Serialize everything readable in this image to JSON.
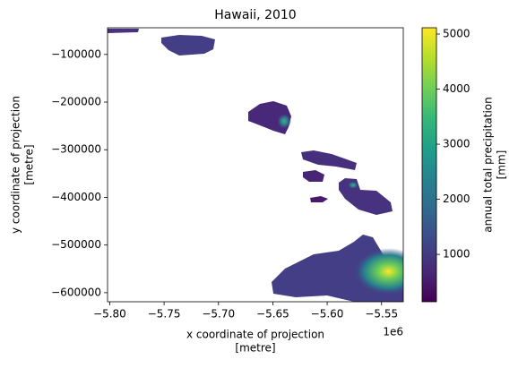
{
  "chart_data": {
    "type": "raster",
    "title": "Hawaii, 2010",
    "x_label": [
      "x coordinate of projection",
      "[metre]"
    ],
    "y_label": [
      "y coordinate of projection",
      "[metre]"
    ],
    "x_offset_label": "1e6",
    "xlim": [
      -5802000,
      -5530000
    ],
    "xticks": [
      {
        "value": -5800000,
        "label": "−5.80"
      },
      {
        "value": -5750000,
        "label": "−5.75"
      },
      {
        "value": -5700000,
        "label": "−5.70"
      },
      {
        "value": -5650000,
        "label": "−5.65"
      },
      {
        "value": -5600000,
        "label": "−5.60"
      },
      {
        "value": -5550000,
        "label": "−5.55"
      }
    ],
    "ylim": [
      -619000,
      -44000
    ],
    "yticks": [
      {
        "value": -100000,
        "label": "−100000"
      },
      {
        "value": -200000,
        "label": "−200000"
      },
      {
        "value": -300000,
        "label": "−300000"
      },
      {
        "value": -400000,
        "label": "−400000"
      },
      {
        "value": -500000,
        "label": "−500000"
      },
      {
        "value": -600000,
        "label": "−600000"
      }
    ],
    "colorbar": {
      "label": [
        "annual total precipitation",
        "[mm]"
      ],
      "lim": [
        140,
        5114
      ],
      "ticks": [
        1000,
        2000,
        3000,
        4000,
        5000
      ],
      "colors": [
        "#440154",
        "#482878",
        "#3e4989",
        "#31688e",
        "#26828e",
        "#1f9e89",
        "#35b779",
        "#6ece58",
        "#b5de2b",
        "#fde725"
      ]
    }
  }
}
